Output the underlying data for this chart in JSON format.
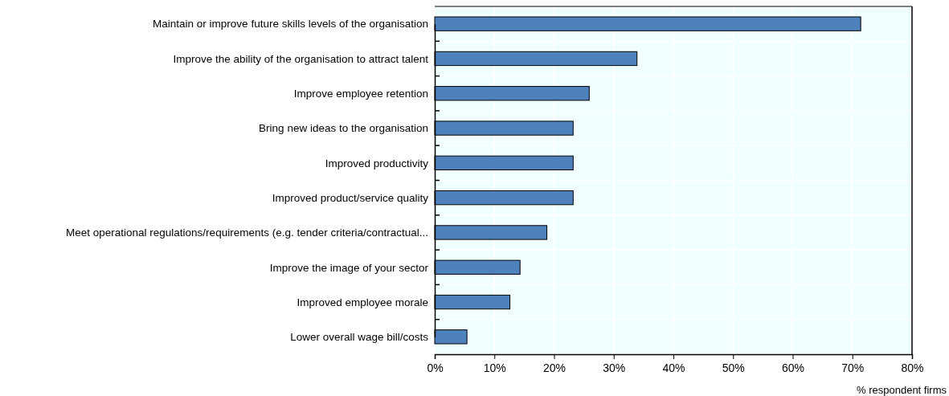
{
  "chart_data": {
    "type": "bar",
    "orientation": "horizontal",
    "xlabel": "% respondent firms",
    "categories": [
      "Maintain or improve future skills levels of the organisation",
      "Improve the ability of the organisation to attract talent",
      "Improve employee retention",
      "Bring new ideas to the organisation",
      "Improved productivity",
      "Improved product/service quality",
      "Meet operational regulations/requirements (e.g. tender criteria/contractual...",
      "Improve the image of your sector",
      "Improved employee morale",
      "Lower overall wage bill/costs"
    ],
    "values": [
      71.4,
      33.9,
      25.9,
      23.2,
      23.2,
      23.2,
      18.8,
      14.3,
      12.6,
      5.4
    ],
    "color": "#4f81bd",
    "xlim": [
      0,
      80
    ],
    "xticks": [
      {
        "value": 0,
        "label": "0%"
      },
      {
        "value": 10,
        "label": "10%"
      },
      {
        "value": 20,
        "label": "20%"
      },
      {
        "value": 30,
        "label": "30%"
      },
      {
        "value": 40,
        "label": "40%"
      },
      {
        "value": 50,
        "label": "50%"
      },
      {
        "value": 60,
        "label": "60%"
      },
      {
        "value": 70,
        "label": "70%"
      },
      {
        "value": 80,
        "label": "80%"
      }
    ],
    "grid": true
  }
}
